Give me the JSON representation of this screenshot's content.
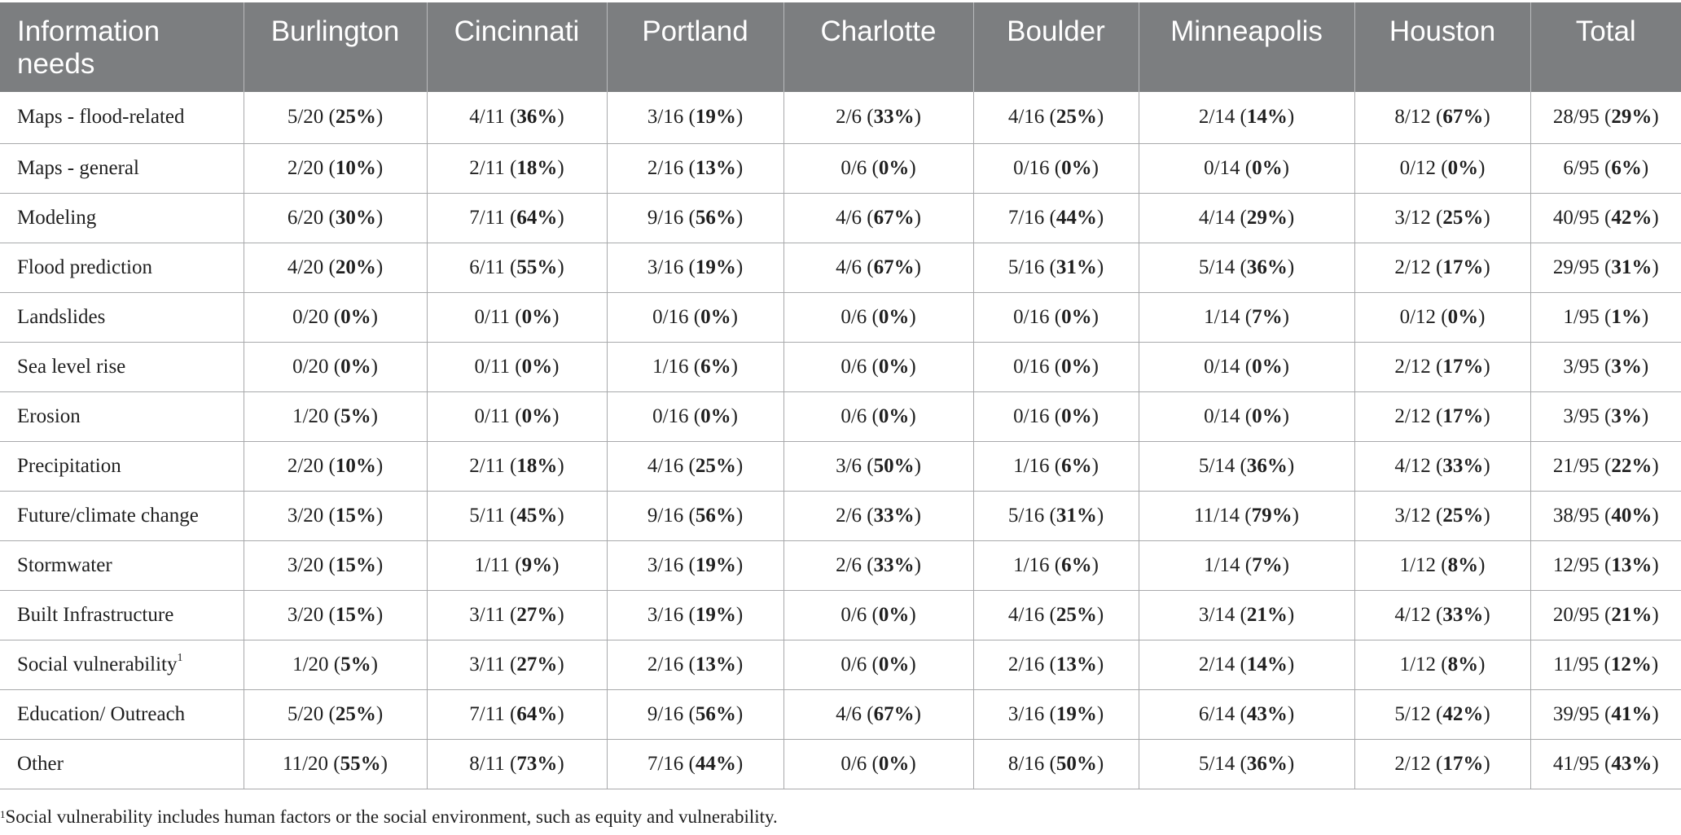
{
  "table": {
    "header": [
      "Information needs",
      "Burlington",
      "Cincinnati",
      "Portland",
      "Charlotte",
      "Boulder",
      "Minneapolis",
      "Houston",
      "Total"
    ],
    "rows": [
      {
        "label": "Maps - flood-related",
        "cells": [
          [
            "5/20 (",
            "25%"
          ],
          [
            "4/11 (",
            "36%"
          ],
          [
            "3/16 (",
            "19%"
          ],
          [
            "2/6 (",
            "33%"
          ],
          [
            "4/16 (",
            "25%"
          ],
          [
            "2/14 (",
            "14%"
          ],
          [
            "8/12 (",
            "67%"
          ],
          [
            "28/95 (",
            "29%"
          ]
        ]
      },
      {
        "label": "Maps - general",
        "cells": [
          [
            "2/20 (",
            "10%"
          ],
          [
            "2/11 (",
            "18%"
          ],
          [
            "2/16 (",
            "13%"
          ],
          [
            "0/6 (",
            "0%"
          ],
          [
            "0/16 (",
            "0%"
          ],
          [
            "0/14 (",
            "0%"
          ],
          [
            "0/12 (",
            "0%"
          ],
          [
            "6/95 (",
            "6%"
          ]
        ]
      },
      {
        "label": "Modeling",
        "cells": [
          [
            "6/20 (",
            "30%"
          ],
          [
            "7/11 (",
            "64%"
          ],
          [
            "9/16 (",
            "56%"
          ],
          [
            "4/6 (",
            "67%"
          ],
          [
            "7/16 (",
            "44%"
          ],
          [
            "4/14 (",
            "29%"
          ],
          [
            "3/12 (",
            "25%"
          ],
          [
            "40/95 (",
            "42%"
          ]
        ]
      },
      {
        "label": "Flood prediction",
        "cells": [
          [
            "4/20 (",
            "20%"
          ],
          [
            "6/11 (",
            "55%"
          ],
          [
            "3/16 (",
            "19%"
          ],
          [
            "4/6 (",
            "67%"
          ],
          [
            "5/16 (",
            "31%"
          ],
          [
            "5/14 (",
            "36%"
          ],
          [
            "2/12 (",
            "17%"
          ],
          [
            "29/95 (",
            "31%"
          ]
        ]
      },
      {
        "label": "Landslides",
        "cells": [
          [
            "0/20 (",
            "0%"
          ],
          [
            "0/11 (",
            "0%"
          ],
          [
            "0/16 (",
            "0%"
          ],
          [
            "0/6 (",
            "0%"
          ],
          [
            "0/16 (",
            "0%"
          ],
          [
            "1/14 (",
            "7%"
          ],
          [
            "0/12 (",
            "0%"
          ],
          [
            "1/95 (",
            "1%"
          ]
        ]
      },
      {
        "label": "Sea level rise",
        "cells": [
          [
            "0/20 (",
            "0%"
          ],
          [
            "0/11 (",
            "0%"
          ],
          [
            "1/16 (",
            "6%"
          ],
          [
            "0/6 (",
            "0%"
          ],
          [
            "0/16 (",
            "0%"
          ],
          [
            "0/14 (",
            "0%"
          ],
          [
            "2/12 (",
            "17%"
          ],
          [
            "3/95 (",
            "3%"
          ]
        ]
      },
      {
        "label": "Erosion",
        "cells": [
          [
            "1/20 (",
            "5%"
          ],
          [
            "0/11 (",
            "0%"
          ],
          [
            "0/16 (",
            "0%"
          ],
          [
            "0/6 (",
            "0%"
          ],
          [
            "0/16 (",
            "0%"
          ],
          [
            "0/14 (",
            "0%"
          ],
          [
            "2/12 (",
            "17%"
          ],
          [
            "3/95 (",
            "3%"
          ]
        ]
      },
      {
        "label": "Precipitation",
        "cells": [
          [
            "2/20 (",
            "10%"
          ],
          [
            "2/11 (",
            "18%"
          ],
          [
            "4/16 (",
            "25%"
          ],
          [
            "3/6 (",
            "50%"
          ],
          [
            "1/16 (",
            "6%"
          ],
          [
            "5/14 (",
            "36%"
          ],
          [
            "4/12 (",
            "33%"
          ],
          [
            "21/95 (",
            "22%"
          ]
        ]
      },
      {
        "label": "Future/climate change",
        "cells": [
          [
            "3/20 (",
            "15%"
          ],
          [
            "5/11 (",
            "45%"
          ],
          [
            "9/16 (",
            "56%"
          ],
          [
            "2/6 (",
            "33%"
          ],
          [
            "5/16 (",
            "31%"
          ],
          [
            "11/14 (",
            "79%"
          ],
          [
            "3/12 (",
            "25%"
          ],
          [
            "38/95 (",
            "40%"
          ]
        ]
      },
      {
        "label": "Stormwater",
        "cells": [
          [
            "3/20 (",
            "15%"
          ],
          [
            "1/11 (",
            "9%"
          ],
          [
            "3/16 (",
            "19%"
          ],
          [
            "2/6 (",
            "33%"
          ],
          [
            "1/16 (",
            "6%"
          ],
          [
            "1/14 (",
            "7%"
          ],
          [
            "1/12 (",
            "8%"
          ],
          [
            "12/95 (",
            "13%"
          ]
        ]
      },
      {
        "label": "Built Infrastructure",
        "cells": [
          [
            "3/20 (",
            "15%"
          ],
          [
            "3/11 (",
            "27%"
          ],
          [
            "3/16 (",
            "19%"
          ],
          [
            "0/6 (",
            "0%"
          ],
          [
            "4/16 (",
            "25%"
          ],
          [
            "3/14 (",
            "21%"
          ],
          [
            "4/12 (",
            "33%"
          ],
          [
            "20/95 (",
            "21%"
          ]
        ]
      },
      {
        "label": "Social vulnerability",
        "sup": "1",
        "cells": [
          [
            "1/20 (",
            "5%"
          ],
          [
            "3/11 (",
            "27%"
          ],
          [
            "2/16 (",
            "13%"
          ],
          [
            "0/6 (",
            "0%"
          ],
          [
            "2/16 (",
            "13%"
          ],
          [
            "2/14 (",
            "14%"
          ],
          [
            "1/12 (",
            "8%"
          ],
          [
            "11/95 (",
            "12%"
          ]
        ]
      },
      {
        "label": "Education/ Outreach",
        "cells": [
          [
            "5/20 (",
            "25%"
          ],
          [
            "7/11 (",
            "64%"
          ],
          [
            "9/16 (",
            "56%"
          ],
          [
            "4/6 (",
            "67%"
          ],
          [
            "3/16 (",
            "19%"
          ],
          [
            "6/14 (",
            "43%"
          ],
          [
            "5/12 (",
            "42%"
          ],
          [
            "39/95 (",
            "41%"
          ]
        ]
      },
      {
        "label": "Other",
        "cells": [
          [
            "11/20 (",
            "55%"
          ],
          [
            "8/11 (",
            "73%"
          ],
          [
            "7/16 (",
            "44%"
          ],
          [
            "0/6 (",
            "0%"
          ],
          [
            "8/16 (",
            "50%"
          ],
          [
            "5/14 (",
            "36%"
          ],
          [
            "2/12 (",
            "17%"
          ],
          [
            "41/95 (",
            "43%"
          ]
        ]
      }
    ]
  },
  "footnote": {
    "marker": "1",
    "text": "Social vulnerability includes human factors or the social environment, such as equity and vulnerability."
  },
  "colors": {
    "header_bg": "#7c7e80",
    "header_text": "#ffffff",
    "grid_lines": "#a8a9ab"
  }
}
